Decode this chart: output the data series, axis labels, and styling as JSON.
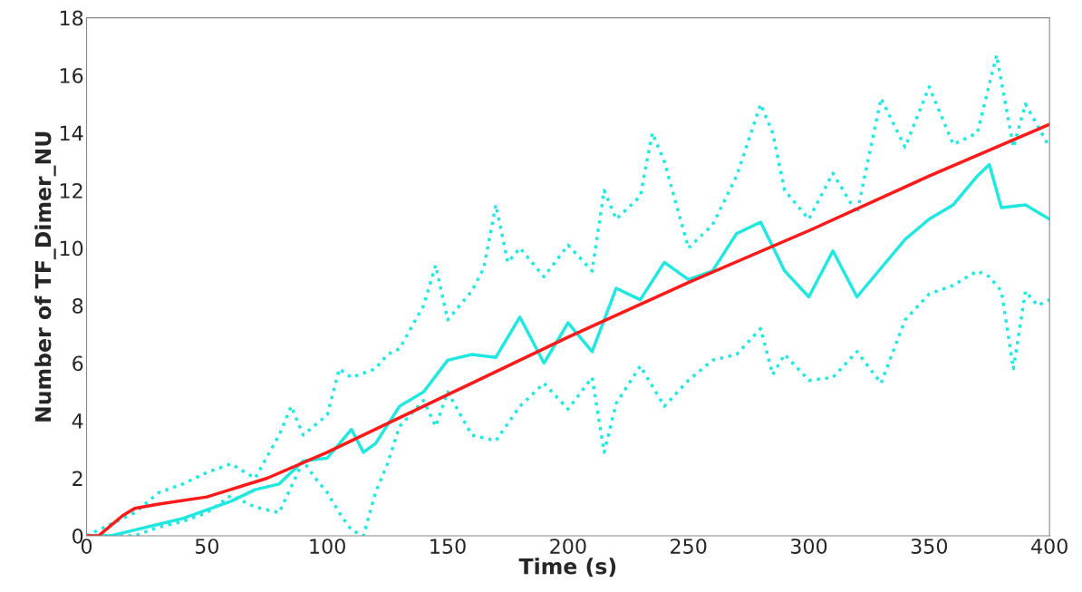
{
  "chart_data": {
    "type": "line",
    "xlabel": "Time (s)",
    "ylabel": "Number of TF_Dimer_NU",
    "xlim": [
      0,
      400
    ],
    "ylim": [
      0,
      18
    ],
    "xticks": [
      0,
      50,
      100,
      150,
      200,
      250,
      300,
      350,
      400
    ],
    "yticks": [
      0,
      2,
      4,
      6,
      8,
      10,
      12,
      14,
      16,
      18
    ],
    "grid": false,
    "legend": false,
    "series": [
      {
        "color": "#20e8e0",
        "line_style": "dotted",
        "x": [
          0,
          20,
          30,
          40,
          50,
          60,
          70,
          80,
          85,
          90,
          100,
          105,
          110,
          120,
          125,
          130,
          140,
          145,
          150,
          160,
          165,
          170,
          175,
          180,
          190,
          200,
          210,
          215,
          220,
          230,
          235,
          240,
          250,
          260,
          270,
          280,
          285,
          290,
          300,
          310,
          320,
          330,
          340,
          350,
          360,
          370,
          378,
          385,
          390,
          400
        ],
        "values": [
          0,
          0.8,
          1.5,
          1.8,
          2.2,
          2.5,
          2.0,
          3.5,
          4.5,
          3.5,
          4.2,
          5.8,
          5.5,
          5.8,
          6.3,
          6.5,
          8.0,
          9.4,
          7.5,
          8.5,
          9.3,
          11.5,
          9.5,
          10.0,
          9.0,
          10.1,
          9.2,
          12.0,
          11.0,
          11.8,
          14.0,
          13.0,
          10.0,
          10.8,
          12.5,
          15.0,
          14.0,
          12.0,
          11.0,
          12.6,
          11.2,
          15.2,
          13.5,
          15.6,
          13.6,
          14.0,
          16.7,
          13.5,
          15.0,
          13.5
        ]
      },
      {
        "color": "#20e8e0",
        "line_style": "dotted",
        "x": [
          0,
          20,
          30,
          40,
          50,
          60,
          70,
          80,
          90,
          95,
          100,
          105,
          110,
          115,
          120,
          125,
          130,
          140,
          145,
          150,
          160,
          170,
          180,
          190,
          200,
          210,
          215,
          220,
          230,
          240,
          250,
          260,
          270,
          280,
          285,
          290,
          300,
          310,
          320,
          330,
          340,
          350,
          360,
          370,
          375,
          380,
          385,
          390,
          395,
          400
        ],
        "values": [
          0,
          0,
          0.3,
          0.5,
          0.8,
          1.4,
          1.0,
          0.8,
          2.6,
          2.0,
          1.5,
          0.8,
          0.2,
          0.0,
          1.5,
          2.5,
          3.8,
          4.7,
          3.8,
          5.0,
          3.5,
          3.3,
          4.5,
          5.3,
          4.4,
          5.5,
          2.9,
          4.6,
          5.9,
          4.5,
          5.4,
          6.1,
          6.3,
          7.2,
          5.6,
          6.3,
          5.4,
          5.5,
          6.4,
          5.3,
          7.5,
          8.4,
          8.7,
          9.2,
          9.0,
          8.5,
          5.8,
          8.5,
          8.0,
          8.2
        ]
      },
      {
        "color": "#20e8e0",
        "line_style": "solid",
        "x": [
          0,
          10,
          20,
          30,
          40,
          50,
          60,
          70,
          80,
          90,
          100,
          110,
          115,
          120,
          130,
          140,
          150,
          160,
          170,
          180,
          190,
          200,
          210,
          220,
          230,
          240,
          250,
          260,
          270,
          280,
          290,
          300,
          310,
          320,
          330,
          340,
          350,
          360,
          370,
          375,
          380,
          390,
          400
        ],
        "values": [
          0,
          0,
          0.2,
          0.4,
          0.6,
          0.9,
          1.2,
          1.6,
          1.8,
          2.6,
          2.7,
          3.7,
          2.9,
          3.2,
          4.5,
          5.0,
          6.1,
          6.3,
          6.2,
          7.6,
          6.0,
          7.4,
          6.4,
          8.6,
          8.2,
          9.5,
          8.9,
          9.2,
          10.5,
          10.9,
          9.2,
          8.3,
          9.9,
          8.3,
          9.3,
          10.3,
          11.0,
          11.5,
          12.5,
          12.9,
          11.4,
          11.5,
          11.0
        ]
      },
      {
        "color": "#ff1a1a",
        "line_style": "solid",
        "x": [
          0,
          5,
          10,
          15,
          20,
          30,
          50,
          75,
          100,
          150,
          200,
          250,
          300,
          350,
          400
        ],
        "values": [
          0,
          0,
          0.35,
          0.7,
          0.95,
          1.1,
          1.35,
          2.0,
          2.9,
          4.9,
          6.9,
          8.8,
          10.6,
          12.5,
          14.3
        ]
      }
    ]
  }
}
